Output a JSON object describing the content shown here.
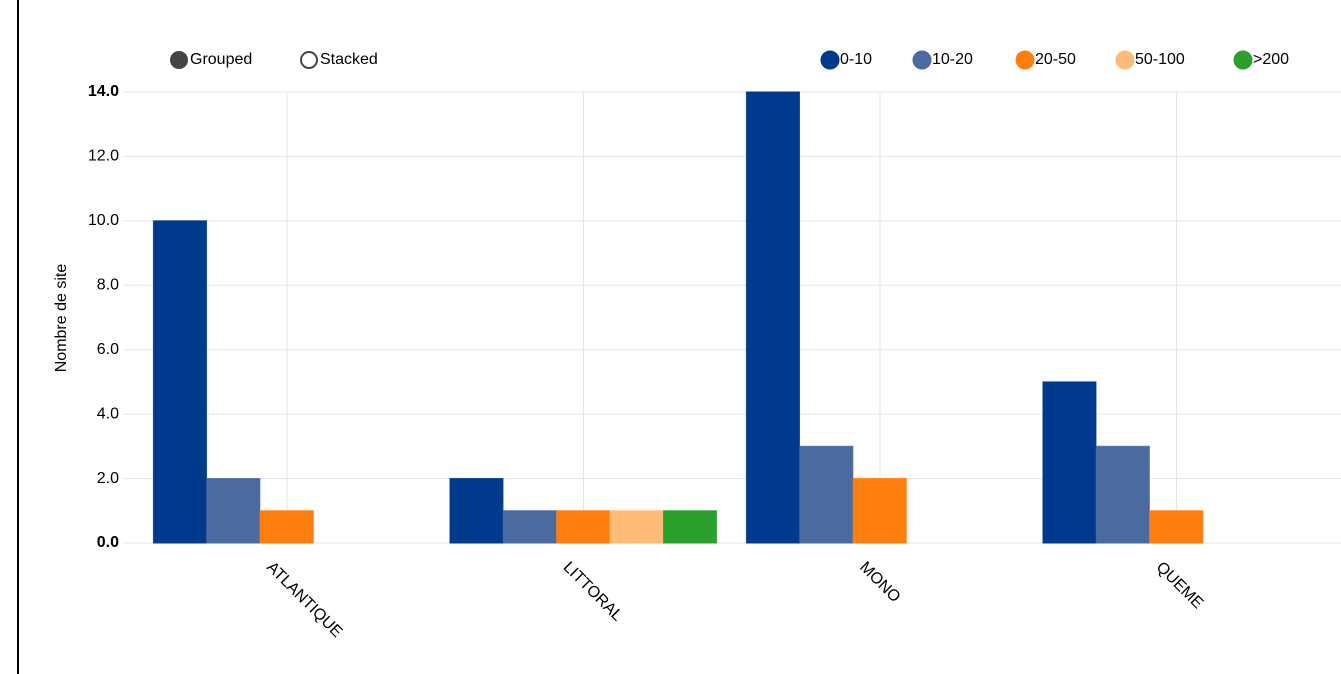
{
  "chart_data": {
    "type": "bar",
    "controls": [
      "Grouped",
      "Stacked"
    ],
    "ylabel": "Nombre de site",
    "categories": [
      "ATLANTIQUE",
      "LITTORAL",
      "MONO",
      "QUEME"
    ],
    "series": [
      {
        "name": "0-10",
        "color": "#003a8c",
        "values": [
          10,
          2,
          14,
          5
        ]
      },
      {
        "name": "10-20",
        "color": "#4a6aa0",
        "values": [
          2,
          1,
          3,
          3
        ]
      },
      {
        "name": "20-50",
        "color": "#ff7f0e",
        "values": [
          1,
          1,
          2,
          1
        ]
      },
      {
        "name": "50-100",
        "color": "#ffbb78",
        "values": [
          0,
          1,
          0,
          0
        ]
      },
      {
        "name": ">200",
        "color": "#2ca02c",
        "values": [
          0,
          1,
          0,
          0
        ]
      }
    ],
    "ylim": [
      0,
      14
    ],
    "yticks": [
      {
        "value": 0,
        "label": "0.0"
      },
      {
        "value": 2,
        "label": "2.0"
      },
      {
        "value": 4,
        "label": "4.0"
      },
      {
        "value": 6,
        "label": "6.0"
      },
      {
        "value": 8,
        "label": "8.0"
      },
      {
        "value": 10,
        "label": "10.0"
      },
      {
        "value": 12,
        "label": "12.0"
      },
      {
        "value": 14,
        "label": "14.0"
      }
    ],
    "grid": true
  }
}
